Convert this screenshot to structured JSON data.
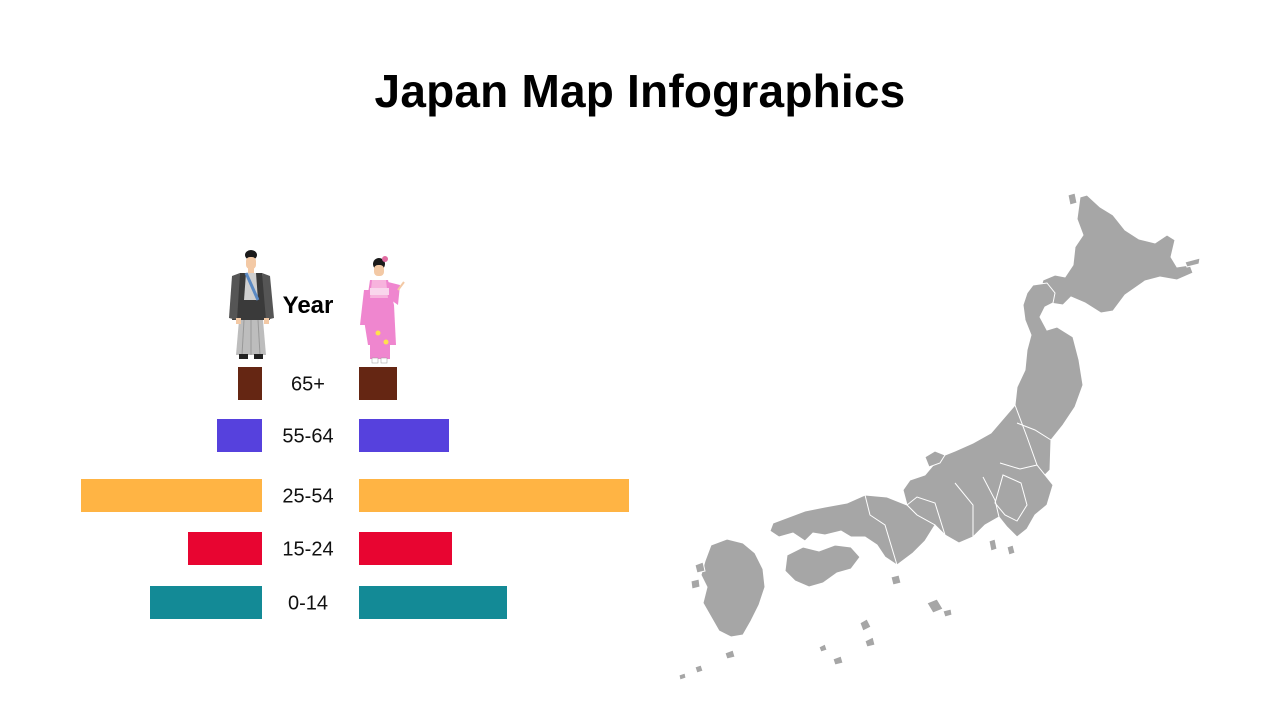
{
  "title": "Japan Map Infographics",
  "chart_data": {
    "type": "bar",
    "orientation": "horizontal-diverging",
    "header_label": "Year",
    "categories": [
      "65+",
      "55-64",
      "25-54",
      "15-24",
      "0-14"
    ],
    "series": [
      {
        "icon": "man-kimono-icon",
        "values": [
          24,
          45,
          181,
          74,
          112
        ]
      },
      {
        "icon": "woman-kimono-icon",
        "values": [
          38,
          90,
          270,
          93,
          148
        ]
      }
    ],
    "colors": [
      "#652613",
      "#5641DD",
      "#FFB444",
      "#E80531",
      "#138A96"
    ],
    "xlim": [
      0,
      300
    ]
  },
  "map": {
    "region": "Japan",
    "fill": "#A6A6A6",
    "border": "#FFFFFF"
  }
}
